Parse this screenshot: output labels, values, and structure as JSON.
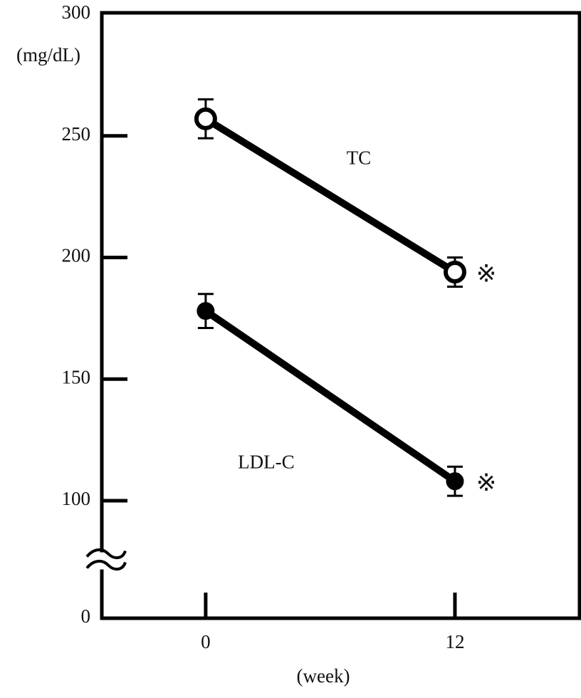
{
  "chart_data": {
    "type": "line",
    "y_label": "(mg/dL)",
    "x_label": "(week)",
    "x": [
      0,
      12
    ],
    "series": [
      {
        "name": "TC",
        "color": "#000000",
        "marker_fill": "#ffffff",
        "values": [
          257,
          194
        ],
        "errors": [
          8,
          6
        ],
        "significance": [
          null,
          "※"
        ]
      },
      {
        "name": "LDL-C",
        "color": "#000000",
        "marker_fill": "#000000",
        "values": [
          178,
          108
        ],
        "errors": [
          7,
          6
        ],
        "significance": [
          null,
          "※"
        ]
      }
    ],
    "xlim": [
      -5,
      18
    ],
    "xticks": [
      0,
      12
    ],
    "ylim": [
      0,
      300
    ],
    "yticks": [
      0,
      100,
      150,
      200,
      250,
      300
    ],
    "y_break": [
      0,
      100
    ]
  }
}
